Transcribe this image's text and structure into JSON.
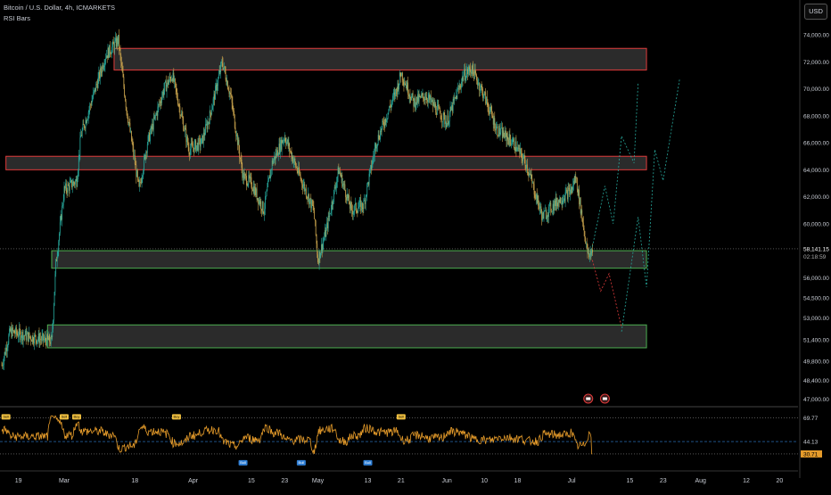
{
  "header": {
    "title": "Bitcoin / U.S. Dollar, 4h, ICMARKETS",
    "indicator": "RSI Bars"
  },
  "currency": "USD",
  "colors": {
    "background": "#000000",
    "candle_up": "#26a69a",
    "candle_down": "#c8a24c",
    "resistance_border": "#e03b3b",
    "support_border": "#4caf50",
    "zone_fill": "#3a3a3a",
    "projection_up": "#26a69a",
    "projection_down": "#e03b3b",
    "rsi_line": "#e59b2a",
    "rsi_overbought": "#f0c040",
    "rsi_oversold": "#2f7fd6"
  },
  "price_scale": {
    "ticks": [
      "74,000.00",
      "72,000.00",
      "70,000.00",
      "68,000.00",
      "66,000.00",
      "64,000.00",
      "62,000.00",
      "60,000.00",
      "58,141.15",
      "56,000.00",
      "54,500.00",
      "53,000.00",
      "51,400.00",
      "49,800.00",
      "48,400.00",
      "47,000.00"
    ],
    "current_price": "58,141.15",
    "countdown": "02:18:59"
  },
  "rsi_scale": {
    "ticks": [
      "69.77",
      "44.13",
      "30.71"
    ]
  },
  "time_axis": {
    "labels": [
      "19",
      "Mar",
      "18",
      "Apr",
      "15",
      "23",
      "May",
      "13",
      "21",
      "Jun",
      "10",
      "18",
      "Jul",
      "15",
      "23",
      "Aug",
      "12",
      "20"
    ]
  },
  "rsi_markers": {
    "overbought": [
      "Sell",
      "Sell",
      "Buy",
      "Buy",
      "Sell"
    ],
    "oversold": [
      "Bull",
      "Bull",
      "Bull"
    ]
  },
  "chart_data": {
    "type": "candlestick",
    "title": "Bitcoin / U.S. Dollar, 4h, ICMARKETS",
    "x_range": [
      "2024-02-15",
      "2024-08-24"
    ],
    "ylim": [
      46500,
      75000
    ],
    "last_price": 58141.15,
    "price_path": [
      [
        "2024-02-15",
        49500
      ],
      [
        "2024-02-17",
        52000
      ],
      [
        "2024-02-22",
        51600
      ],
      [
        "2024-02-27",
        51300
      ],
      [
        "2024-02-28",
        57000
      ],
      [
        "2024-03-01",
        62500
      ],
      [
        "2024-03-04",
        63200
      ],
      [
        "2024-03-05",
        66500
      ],
      [
        "2024-03-07",
        68500
      ],
      [
        "2024-03-11",
        72500
      ],
      [
        "2024-03-14",
        73600
      ],
      [
        "2024-03-16",
        68500
      ],
      [
        "2024-03-19",
        62500
      ],
      [
        "2024-03-21",
        66000
      ],
      [
        "2024-03-25",
        70000
      ],
      [
        "2024-03-27",
        71000
      ],
      [
        "2024-03-31",
        65500
      ],
      [
        "2024-04-03",
        66000
      ],
      [
        "2024-04-05",
        68000
      ],
      [
        "2024-04-08",
        72000
      ],
      [
        "2024-04-10",
        69500
      ],
      [
        "2024-04-13",
        63500
      ],
      [
        "2024-04-15",
        63000
      ],
      [
        "2024-04-18",
        61000
      ],
      [
        "2024-04-20",
        64500
      ],
      [
        "2024-04-23",
        66500
      ],
      [
        "2024-04-26",
        64000
      ],
      [
        "2024-04-30",
        61000
      ],
      [
        "2024-05-01",
        57300
      ],
      [
        "2024-05-03",
        59500
      ],
      [
        "2024-05-06",
        64000
      ],
      [
        "2024-05-09",
        61000
      ],
      [
        "2024-05-12",
        61400
      ],
      [
        "2024-05-15",
        66000
      ],
      [
        "2024-05-20",
        70000
      ],
      [
        "2024-05-21",
        71200
      ],
      [
        "2024-05-24",
        69000
      ],
      [
        "2024-05-27",
        69500
      ],
      [
        "2024-06-01",
        67500
      ],
      [
        "2024-06-05",
        71000
      ],
      [
        "2024-06-07",
        71500
      ],
      [
        "2024-06-10",
        69500
      ],
      [
        "2024-06-13",
        67000
      ],
      [
        "2024-06-17",
        66000
      ],
      [
        "2024-06-20",
        64500
      ],
      [
        "2024-06-24",
        60500
      ],
      [
        "2024-06-27",
        61500
      ],
      [
        "2024-07-01",
        62500
      ],
      [
        "2024-07-02",
        63500
      ],
      [
        "2024-07-04",
        59500
      ],
      [
        "2024-07-05",
        57500
      ],
      [
        "2024-07-06",
        58141
      ]
    ],
    "zones": [
      {
        "type": "resistance",
        "from": "2024-03-13",
        "to": "2024-07-19",
        "low": 71400,
        "high": 73000
      },
      {
        "type": "resistance",
        "from": "2024-02-16",
        "to": "2024-07-19",
        "low": 64000,
        "high": 65000
      },
      {
        "type": "support",
        "from": "2024-02-27",
        "to": "2024-07-19",
        "low": 56700,
        "high": 58000
      },
      {
        "type": "support",
        "from": "2024-02-26",
        "to": "2024-07-19",
        "low": 50800,
        "high": 52500
      }
    ],
    "projections": [
      {
        "direction": "up",
        "points": [
          [
            "2024-07-06",
            58300
          ],
          [
            "2024-07-09",
            62800
          ],
          [
            "2024-07-11",
            60000
          ],
          [
            "2024-07-13",
            66500
          ],
          [
            "2024-07-16",
            64500
          ],
          [
            "2024-07-17",
            70500
          ]
        ]
      },
      {
        "direction": "up",
        "points": [
          [
            "2024-07-13",
            52000
          ],
          [
            "2024-07-17",
            60500
          ],
          [
            "2024-07-19",
            55300
          ],
          [
            "2024-07-21",
            65500
          ],
          [
            "2024-07-23",
            63200
          ],
          [
            "2024-07-27",
            70800
          ]
        ]
      },
      {
        "direction": "down",
        "points": [
          [
            "2024-07-06",
            57300
          ],
          [
            "2024-07-08",
            55000
          ],
          [
            "2024-07-10",
            56300
          ],
          [
            "2024-07-13",
            52300
          ]
        ]
      }
    ],
    "rsi": {
      "levels": [
        69.77,
        44.13,
        30.71
      ],
      "ylim": [
        20,
        80
      ],
      "last": 30.71
    }
  }
}
